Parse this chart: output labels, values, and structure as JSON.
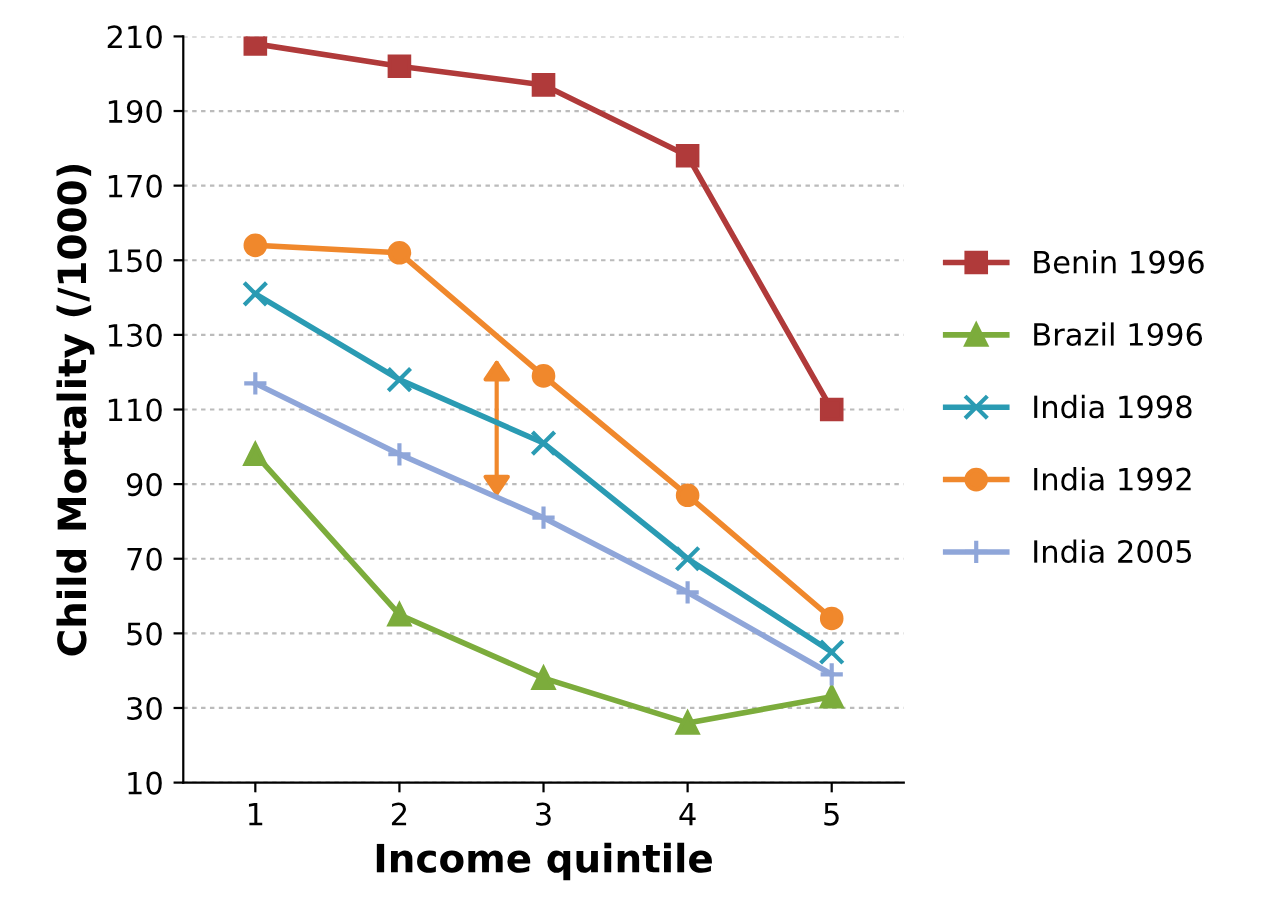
{
  "chart_data": {
    "type": "line",
    "xlabel": "Income quintile",
    "ylabel": "Child Mortality (/1000)",
    "categories": [
      "1",
      "2",
      "3",
      "4",
      "5"
    ],
    "series": [
      {
        "name": "Benin 1996",
        "color": "#b03a3a",
        "marker": "square",
        "values": [
          208,
          202,
          197,
          178,
          110
        ]
      },
      {
        "name": "Brazil 1996",
        "color": "#7cac3c",
        "marker": "triangle",
        "values": [
          98,
          55,
          38,
          26,
          33
        ]
      },
      {
        "name": "India 1998",
        "color": "#2a9bb3",
        "marker": "cross",
        "values": [
          141,
          118,
          101,
          70,
          45
        ]
      },
      {
        "name": "India 1992",
        "color": "#f0882c",
        "marker": "circle",
        "values": [
          154,
          152,
          119,
          87,
          54
        ]
      },
      {
        "name": "India 2005",
        "color": "#8fa6d9",
        "marker": "plus",
        "values": [
          117,
          98,
          81,
          61,
          39
        ]
      }
    ],
    "ylim": [
      10,
      210
    ],
    "yticks": [
      10,
      30,
      50,
      70,
      90,
      110,
      130,
      150,
      170,
      190,
      210
    ],
    "grid": "y",
    "legend": "right",
    "line_style": "solid"
  }
}
